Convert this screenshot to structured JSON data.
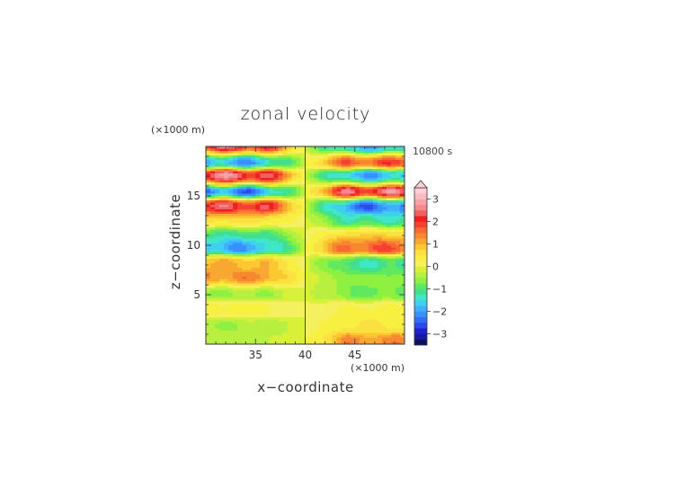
{
  "chart_data": {
    "type": "heatmap",
    "title": "zonal velocity",
    "xlabel": "x−coordinate",
    "ylabel": "z−coordinate",
    "x_unit": "(×1000 m)",
    "y_unit": "(×1000 m)",
    "time_label": "10800 s",
    "xlim": [
      30,
      50
    ],
    "ylim": [
      0,
      20
    ],
    "x_ticks": [
      35,
      40,
      45
    ],
    "y_ticks": [
      5,
      10,
      15
    ],
    "colorbar": {
      "min": -3.5,
      "max": 3.5,
      "ticks": [
        "3",
        "2",
        "1",
        "0",
        "−1",
        "−2",
        "−3"
      ],
      "tick_values": [
        3,
        2,
        1,
        0,
        -1,
        -2,
        -3
      ],
      "level_step": 0.25,
      "colors": [
        "#101060",
        "#1a1aa0",
        "#2020d0",
        "#2b4ae8",
        "#2f6ef5",
        "#3790ff",
        "#3fb0ff",
        "#3fd0f0",
        "#3fe6c8",
        "#40e090",
        "#60e860",
        "#8ef040",
        "#b8f040",
        "#d8f038",
        "#f4f060",
        "#f8f040",
        "#fae040",
        "#fbc830",
        "#f8a830",
        "#f88830",
        "#f86830",
        "#f84030",
        "#f02020",
        "#f06060",
        "#f88890",
        "#f4a4a8",
        "#f8bcc0",
        "#ffd0d8"
      ]
    },
    "bands": [
      {
        "z": 19.8,
        "left": 2.6,
        "right": -2.2
      },
      {
        "z": 18.7,
        "left": -2.2,
        "right": 2.0
      },
      {
        "z": 16.8,
        "left": 2.6,
        "right": -2.0
      },
      {
        "z": 15.5,
        "left": -2.6,
        "right": 2.8
      },
      {
        "z": 14.0,
        "left": 2.4,
        "right": -2.4
      },
      {
        "z": 12.6,
        "left": 0.6,
        "right": -1.2
      },
      {
        "z": 11.0,
        "left": -1.0,
        "right": 0.6
      },
      {
        "z": 10.0,
        "left": -2.0,
        "right": 1.8
      },
      {
        "z": 8.0,
        "left": 1.0,
        "right": -1.2
      },
      {
        "z": 6.6,
        "left": 1.4,
        "right": -0.6
      },
      {
        "z": 5.3,
        "left": -0.6,
        "right": -0.8
      },
      {
        "z": 3.5,
        "left": 0.4,
        "right": 0.3
      },
      {
        "z": 1.8,
        "left": -0.5,
        "right": 0.5
      },
      {
        "z": 0.3,
        "left": -0.3,
        "right": 1.3
      }
    ]
  }
}
